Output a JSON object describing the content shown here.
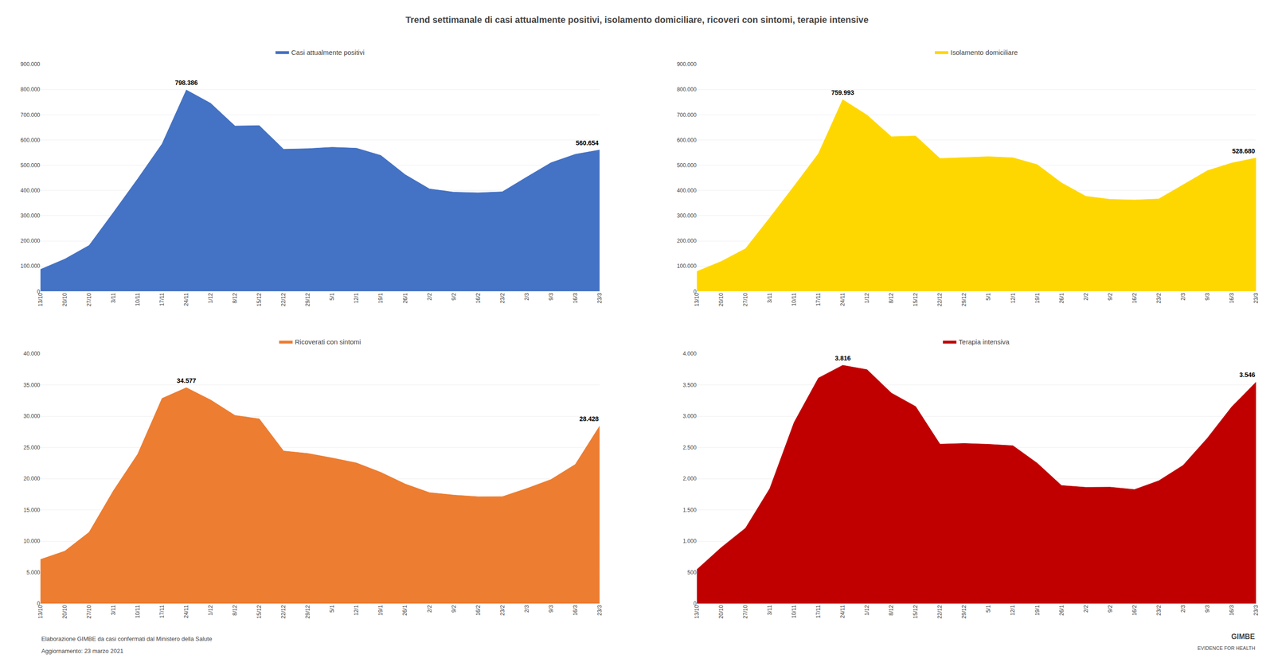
{
  "title": "Trend settimanale di casi attualmente positivi, isolamento domiciliare, ricoveri con sintomi, terapie intensive",
  "annotations": [
    "Elaborazione GIMBE da casi confermati dal Ministero della Salute",
    "Aggiornamento: 23 marzo 2021",
    "GIMBE",
    "EVIDENCE FOR HEALTH"
  ],
  "chart_data": [
    {
      "type": "area",
      "legend": "top",
      "grid": true,
      "categories": [
        "13/10",
        "20/10",
        "27/10",
        "3/11",
        "10/11",
        "17/11",
        "24/11",
        "1/12",
        "8/12",
        "15/12",
        "22/12",
        "29/12",
        "5/1",
        "12/1",
        "19/1",
        "26/1",
        "2/2",
        "9/2",
        "16/2",
        "23/2",
        "2/3",
        "9/3",
        "16/3",
        "23/3"
      ],
      "series": [
        {
          "name": "Casi attualmente positivi",
          "color": "#4472C4",
          "values": [
            87193,
            128098,
            182226,
            313011,
            446354,
            584493,
            798386,
            745537,
            655720,
            657224,
            563543,
            565785,
            571252,
            567466,
            538922,
            462700,
            406229,
            393426,
            390706,
            394921,
            453106,
            510052,
            543477,
            560654
          ],
          "value_labels": [
            null,
            null,
            null,
            null,
            null,
            null,
            "798.386",
            null,
            null,
            null,
            null,
            null,
            null,
            null,
            null,
            null,
            null,
            null,
            null,
            null,
            null,
            null,
            null,
            "560.654"
          ]
        }
      ],
      "ylim": [
        0,
        900000
      ],
      "yticks": [
        0,
        {
          "value": 100000,
          "label": "100.000"
        },
        {
          "value": 200000,
          "label": "200.000"
        },
        {
          "value": 300000,
          "label": "300.000"
        },
        {
          "value": 400000,
          "label": "400.000"
        },
        {
          "value": 500000,
          "label": "500.000"
        },
        {
          "value": 600000,
          "label": "600.000"
        },
        {
          "value": 700000,
          "label": "700.000"
        },
        {
          "value": 800000,
          "label": "800.000"
        },
        {
          "value": 900000,
          "label": "900.000"
        }
      ]
    },
    {
      "type": "area",
      "legend": "top",
      "grid": true,
      "categories": [
        "13/10",
        "20/10",
        "27/10",
        "3/11",
        "10/11",
        "17/11",
        "24/11",
        "1/12",
        "8/12",
        "15/12",
        "22/12",
        "29/12",
        "5/1",
        "12/1",
        "19/1",
        "26/1",
        "2/2",
        "9/2",
        "16/2",
        "23/2",
        "2/3",
        "9/3",
        "16/3",
        "23/3"
      ],
      "series": [
        {
          "name": "Isolamento domiciliare",
          "color": "#FFD700",
          "values": [
            79011,
            118498,
            169222,
            291847,
            417706,
            545903,
            759993,
            698781,
            613213,
            615877,
            526862,
            530456,
            534021,
            529815,
            502437,
            430186,
            377019,
            364940,
            362424,
            366477,
            423162,
            478543,
            508826,
            528680
          ],
          "value_labels": [
            null,
            null,
            null,
            null,
            null,
            null,
            "759.993",
            null,
            null,
            null,
            null,
            null,
            null,
            null,
            null,
            null,
            null,
            null,
            null,
            null,
            null,
            null,
            null,
            "528.680"
          ]
        }
      ],
      "ylim": [
        0,
        900000
      ],
      "yticks": [
        0,
        {
          "value": 100000,
          "label": "100.000"
        },
        {
          "value": 200000,
          "label": "200.000"
        },
        {
          "value": 300000,
          "label": "300.000"
        },
        {
          "value": 400000,
          "label": "400.000"
        },
        {
          "value": 500000,
          "label": "500.000"
        },
        {
          "value": 600000,
          "label": "600.000"
        },
        {
          "value": 700000,
          "label": "700.000"
        },
        {
          "value": 800000,
          "label": "800.000"
        },
        {
          "value": 900000,
          "label": "900.000"
        }
      ]
    },
    {
      "type": "area",
      "legend": "top",
      "grid": true,
      "categories": [
        "13/10",
        "20/10",
        "27/10",
        "3/11",
        "10/11",
        "17/11",
        "24/11",
        "1/12",
        "8/12",
        "15/12",
        "22/12",
        "29/12",
        "5/1",
        "12/1",
        "19/1",
        "26/1",
        "2/2",
        "9/2",
        "16/2",
        "23/2",
        "2/3",
        "9/3",
        "16/3",
        "23/3"
      ],
      "series": [
        {
          "name": "Ricoverati con sintomi",
          "color": "#ED7D31",
          "values": [
            7066,
            8403,
            11426,
            18081,
            23946,
            32858,
            34577,
            32614,
            30135,
            29584,
            24438,
            24044,
            23322,
            22522,
            21018,
            19156,
            17773,
            17381,
            17116,
            17127,
            18430,
            19873,
            22291,
            28428
          ],
          "value_labels": [
            null,
            null,
            null,
            null,
            null,
            null,
            "34.577",
            null,
            null,
            null,
            null,
            null,
            null,
            null,
            null,
            null,
            null,
            null,
            null,
            null,
            null,
            null,
            null,
            "28.428"
          ]
        }
      ],
      "ylim": [
        0,
        40000
      ],
      "yticks": [
        0,
        {
          "value": 5000,
          "label": "5.000"
        },
        {
          "value": 10000,
          "label": "10.000"
        },
        {
          "value": 15000,
          "label": "15.000"
        },
        {
          "value": 20000,
          "label": "20.000"
        },
        {
          "value": 25000,
          "label": "25.000"
        },
        {
          "value": 30000,
          "label": "30.000"
        },
        {
          "value": 35000,
          "label": "35.000"
        },
        {
          "value": 40000,
          "label": "40.000"
        }
      ]
    },
    {
      "type": "area",
      "legend": "top",
      "grid": true,
      "categories": [
        "13/10",
        "20/10",
        "27/10",
        "3/11",
        "10/11",
        "17/11",
        "24/11",
        "1/12",
        "8/12",
        "15/12",
        "22/12",
        "29/12",
        "5/1",
        "12/1",
        "19/1",
        "26/1",
        "2/2",
        "9/2",
        "16/2",
        "23/2",
        "2/3",
        "9/3",
        "16/3",
        "23/3"
      ],
      "series": [
        {
          "name": "Terapia intensiva",
          "color": "#C00000",
          "values": [
            545,
            897,
            1208,
            1843,
            2902,
            3612,
            3816,
            3747,
            3372,
            3156,
            2553,
            2565,
            2551,
            2529,
            2249,
            1891,
            1862,
            1865,
            1826,
            1967,
            2214,
            2650,
            3150,
            3546
          ],
          "value_labels": [
            null,
            null,
            null,
            null,
            null,
            null,
            "3.816",
            null,
            null,
            null,
            null,
            null,
            null,
            null,
            null,
            null,
            null,
            null,
            null,
            null,
            null,
            null,
            null,
            "3.546"
          ]
        }
      ],
      "ylim": [
        0,
        4000
      ],
      "yticks": [
        0,
        500,
        {
          "value": 1000,
          "label": "1.000"
        },
        {
          "value": 1500,
          "label": "1.500"
        },
        {
          "value": 2000,
          "label": "2.000"
        },
        {
          "value": 2500,
          "label": "2.500"
        },
        {
          "value": 3000,
          "label": "3.000"
        },
        {
          "value": 3500,
          "label": "3.500"
        },
        {
          "value": 4000,
          "label": "4.000"
        }
      ]
    }
  ]
}
